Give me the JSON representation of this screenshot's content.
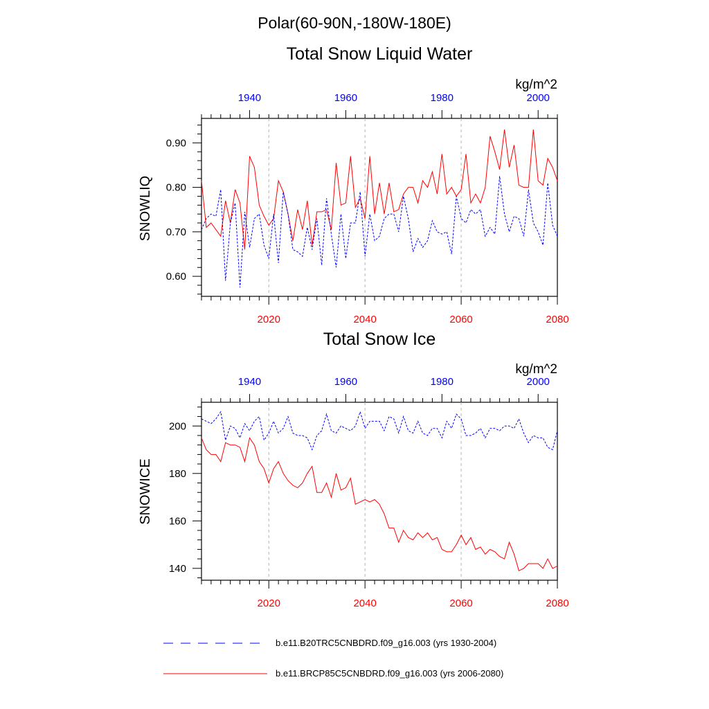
{
  "header": {
    "region": "Polar(60-90N,-180W-180E)"
  },
  "colors": {
    "historical": "#0000ff",
    "future": "#ff0000",
    "text": "#000000",
    "grid": "#b3b3b3"
  },
  "legend": {
    "historical_label": "b.e11.B20TRC5CNBDRD.f09_g16.003 (yrs 1930-2004)",
    "future_label": "b.e11.BRCP85C5CNBDRD.f09_g16.003 (yrs 2006-2080)"
  },
  "chart_data": [
    {
      "type": "line",
      "title": "Total Snow Liquid Water",
      "units": "kg/m^2",
      "ylabel": "SNOWLIQ",
      "ylim": [
        0.555,
        0.955
      ],
      "yticks": [
        0.6,
        0.7,
        0.8,
        0.9
      ],
      "ytick_labels": [
        "0.60",
        "0.70",
        "0.80",
        "0.90"
      ],
      "bottom_axis": {
        "range": [
          2006,
          2080
        ],
        "ticks": [
          2020,
          2040,
          2060,
          2080
        ],
        "tick_labels": [
          "2020",
          "2040",
          "2060",
          "2080"
        ]
      },
      "top_axis": {
        "range": [
          1930,
          2004
        ],
        "ticks": [
          1940,
          1960,
          1980,
          2000
        ],
        "tick_labels": [
          "1940",
          "1960",
          "1980",
          "2000"
        ]
      },
      "series": [
        {
          "name": "b.e11.BRCP85C5CNBDRD.f09_g16.003 (yrs 2006-2080)",
          "style": "solid",
          "axis": "bottom",
          "start_year": 2006,
          "values": [
            0.815,
            0.71,
            0.72,
            0.705,
            0.69,
            0.77,
            0.72,
            0.795,
            0.765,
            0.66,
            0.87,
            0.845,
            0.76,
            0.735,
            0.715,
            0.73,
            0.815,
            0.79,
            0.74,
            0.68,
            0.75,
            0.705,
            0.77,
            0.67,
            0.745,
            0.745,
            0.75,
            0.705,
            0.855,
            0.76,
            0.765,
            0.87,
            0.755,
            0.775,
            0.73,
            0.87,
            0.74,
            0.81,
            0.74,
            0.81,
            0.745,
            0.75,
            0.785,
            0.8,
            0.8,
            0.765,
            0.815,
            0.8,
            0.835,
            0.785,
            0.875,
            0.785,
            0.8,
            0.78,
            0.795,
            0.875,
            0.765,
            0.785,
            0.765,
            0.8,
            0.915,
            0.88,
            0.84,
            0.93,
            0.845,
            0.895,
            0.805,
            0.8,
            0.8,
            0.93,
            0.815,
            0.805,
            0.865,
            0.845,
            0.815
          ]
        },
        {
          "name": "b.e11.B20TRC5CNBDRD.f09_g16.003 (yrs 1930-2004)",
          "style": "dashed",
          "axis": "top",
          "start_year": 1930,
          "values": [
            0.705,
            0.73,
            0.74,
            0.735,
            0.795,
            0.59,
            0.72,
            0.765,
            0.575,
            0.745,
            0.665,
            0.73,
            0.74,
            0.67,
            0.64,
            0.74,
            0.63,
            0.79,
            0.74,
            0.66,
            0.655,
            0.645,
            0.71,
            0.66,
            0.73,
            0.625,
            0.775,
            0.695,
            0.62,
            0.74,
            0.64,
            0.72,
            0.72,
            0.79,
            0.645,
            0.74,
            0.68,
            0.69,
            0.73,
            0.74,
            0.74,
            0.7,
            0.78,
            0.73,
            0.655,
            0.685,
            0.665,
            0.68,
            0.725,
            0.7,
            0.695,
            0.7,
            0.65,
            0.78,
            0.73,
            0.72,
            0.75,
            0.74,
            0.75,
            0.69,
            0.71,
            0.695,
            0.825,
            0.74,
            0.7,
            0.735,
            0.73,
            0.69,
            0.795,
            0.72,
            0.7,
            0.67,
            0.81,
            0.715,
            0.69
          ]
        }
      ]
    },
    {
      "type": "line",
      "title": "Total Snow Ice",
      "units": "kg/m^2",
      "ylabel": "SNOWICE",
      "ylim": [
        135,
        210
      ],
      "yticks": [
        140,
        160,
        180,
        200
      ],
      "ytick_labels": [
        "140",
        "160",
        "180",
        "200"
      ],
      "bottom_axis": {
        "range": [
          2006,
          2080
        ],
        "ticks": [
          2020,
          2040,
          2060,
          2080
        ],
        "tick_labels": [
          "2020",
          "2040",
          "2060",
          "2080"
        ]
      },
      "top_axis": {
        "range": [
          1930,
          2004
        ],
        "ticks": [
          1940,
          1960,
          1980,
          2000
        ],
        "tick_labels": [
          "1940",
          "1960",
          "1980",
          "2000"
        ]
      },
      "series": [
        {
          "name": "b.e11.BRCP85C5CNBDRD.f09_g16.003 (yrs 2006-2080)",
          "style": "solid",
          "axis": "bottom",
          "start_year": 2006,
          "values": [
            195,
            190,
            188,
            188,
            185,
            193,
            192,
            192,
            191,
            185,
            195,
            192,
            185,
            182,
            176,
            182,
            185,
            180,
            177,
            175,
            174,
            176,
            180,
            183,
            172,
            172,
            176,
            170,
            180,
            173,
            174,
            178,
            167,
            168,
            169,
            168,
            169,
            167,
            163,
            157,
            157,
            151,
            156,
            153,
            152,
            155,
            153,
            155,
            152,
            153,
            148,
            147,
            147,
            150,
            154,
            150,
            153,
            148,
            149,
            146,
            148,
            147,
            145,
            144,
            151,
            146,
            139,
            140,
            142,
            142,
            142,
            140,
            144,
            140,
            141
          ]
        },
        {
          "name": "b.e11.B20TRC5CNBDRD.f09_g16.003 (yrs 1930-2004)",
          "style": "dashed",
          "axis": "top",
          "start_year": 1930,
          "values": [
            203,
            202,
            201,
            203,
            206,
            194,
            200,
            199,
            195,
            201,
            198,
            202,
            204,
            194,
            197,
            202,
            197,
            199,
            204,
            197,
            196,
            196,
            195,
            190,
            196,
            198,
            205,
            198,
            197,
            200,
            199,
            198,
            200,
            206,
            199,
            202,
            202,
            202,
            198,
            204,
            203,
            197,
            204,
            198,
            197,
            202,
            197,
            196,
            199,
            199,
            195,
            202,
            199,
            205,
            203,
            196,
            196,
            197,
            199,
            195,
            199,
            199,
            198,
            200,
            200,
            199,
            203,
            197,
            193,
            196,
            195,
            195,
            191,
            190,
            198
          ]
        }
      ]
    }
  ]
}
